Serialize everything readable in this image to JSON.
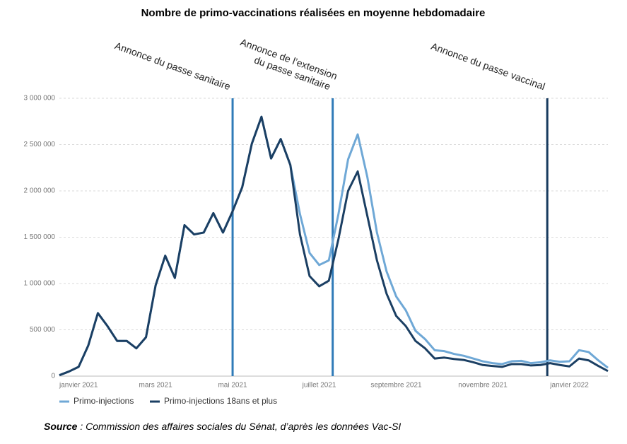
{
  "chart_data": {
    "type": "line",
    "title": "Nombre de primo-vaccinations réalisées en moyenne hebdomadaire",
    "categories": [
      null,
      null,
      "janvier 2021",
      null,
      null,
      null,
      null,
      null,
      null,
      null,
      "mars 2021",
      null,
      null,
      null,
      null,
      null,
      null,
      null,
      "mai 2021",
      null,
      null,
      null,
      null,
      null,
      null,
      null,
      null,
      "juillet 2021",
      null,
      null,
      null,
      null,
      null,
      null,
      null,
      "septembre 2021",
      null,
      null,
      null,
      null,
      null,
      null,
      null,
      null,
      "novembre 2021",
      null,
      null,
      null,
      null,
      null,
      null,
      null,
      null,
      "janvier 2022",
      null,
      null,
      null,
      null
    ],
    "series": [
      {
        "name": "Primo-injections",
        "color": "#6fa8d6",
        "values": [
          10000,
          50000,
          100000,
          330000,
          680000,
          540000,
          380000,
          380000,
          300000,
          420000,
          980000,
          1300000,
          1060000,
          1630000,
          1530000,
          1550000,
          1760000,
          1550000,
          1780000,
          2040000,
          2510000,
          2800000,
          2350000,
          2560000,
          2280000,
          1750000,
          1330000,
          1200000,
          1250000,
          1750000,
          2340000,
          2610000,
          2150000,
          1550000,
          1130000,
          860000,
          710000,
          490000,
          400000,
          280000,
          270000,
          240000,
          220000,
          190000,
          160000,
          140000,
          130000,
          160000,
          165000,
          140000,
          150000,
          170000,
          155000,
          160000,
          280000,
          260000,
          170000,
          90000
        ]
      },
      {
        "name": "Primo-injections 18ans et plus",
        "color": "#1b3f63",
        "values": [
          10000,
          50000,
          100000,
          330000,
          680000,
          540000,
          380000,
          380000,
          300000,
          420000,
          980000,
          1300000,
          1060000,
          1630000,
          1530000,
          1550000,
          1760000,
          1550000,
          1780000,
          2040000,
          2510000,
          2800000,
          2350000,
          2560000,
          2280000,
          1530000,
          1080000,
          970000,
          1030000,
          1480000,
          2000000,
          2210000,
          1730000,
          1250000,
          890000,
          650000,
          540000,
          380000,
          300000,
          190000,
          200000,
          185000,
          175000,
          150000,
          120000,
          110000,
          100000,
          130000,
          130000,
          115000,
          120000,
          140000,
          120000,
          105000,
          190000,
          170000,
          110000,
          55000
        ]
      }
    ],
    "ylim": [
      0,
      3000000
    ],
    "yticks": [
      {
        "value": 0,
        "label": "0"
      },
      {
        "value": 500000,
        "label": "500 000"
      },
      {
        "value": 1000000,
        "label": "1 000 000"
      },
      {
        "value": 1500000,
        "label": "1 500 000"
      },
      {
        "value": 2000000,
        "label": "2 000 000"
      },
      {
        "value": 2500000,
        "label": "2 500 000"
      },
      {
        "value": 3000000,
        "label": "3 000 000"
      }
    ],
    "grid": true,
    "annotations": [
      {
        "lines": [
          "Annonce du passe sanitaire"
        ],
        "x": 18,
        "color": "#2f7bb8"
      },
      {
        "lines": [
          "Annonce de l’extension",
          "du passe sanitaire"
        ],
        "x": 28.4,
        "color": "#2f7bb8"
      },
      {
        "lines": [
          "Annonce du passe vaccinal"
        ],
        "x": 50.7,
        "color": "#173a5e"
      }
    ],
    "source_label": "Source",
    "source_text": " : Commission des affaires sociales du Sénat, d’après les données Vac-SI"
  }
}
